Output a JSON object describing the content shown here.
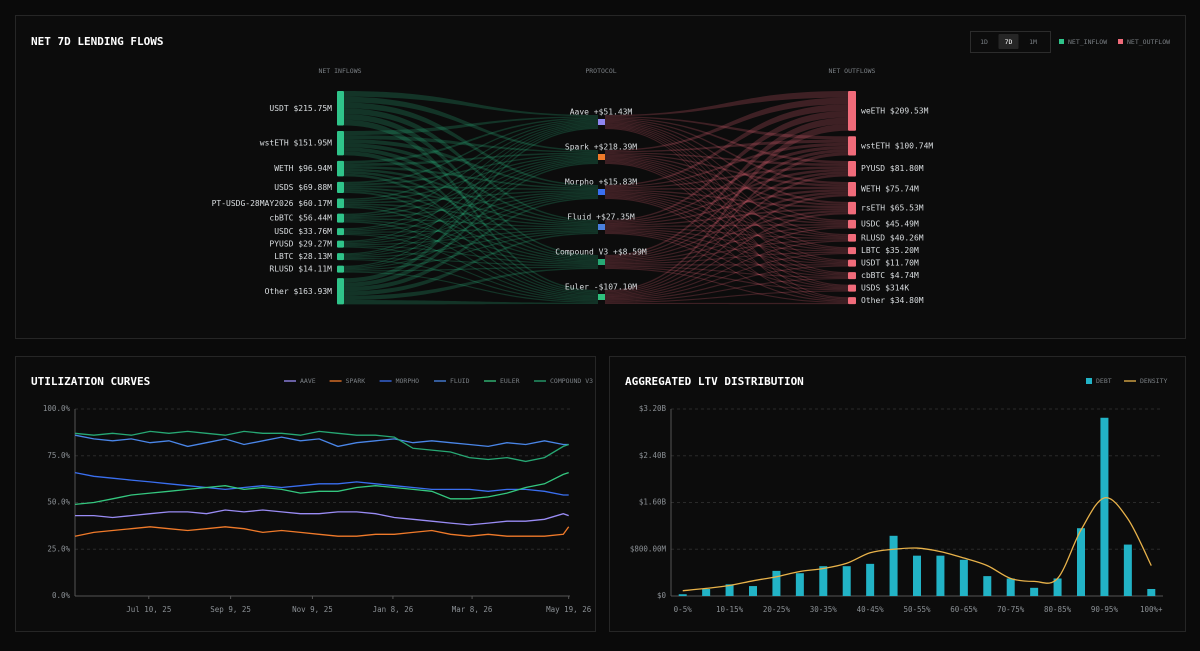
{
  "chart_data": [
    {
      "type": "sankey",
      "title": "NET 7D LENDING FLOWS",
      "ranges": [
        "1D",
        "7D",
        "1M"
      ],
      "active_range": "7D",
      "legend": [
        {
          "name": "NET_INFLOW",
          "color": "#2fc48a"
        },
        {
          "name": "NET_OUTFLOW",
          "color": "#f06b7a"
        }
      ],
      "column_headers": [
        "NET INFLOWS",
        "PROTOCOL",
        "NET OUTFLOWS"
      ],
      "inflows": [
        {
          "label": "USDT $215.75M",
          "value": 215.75
        },
        {
          "label": "wstETH $151.95M",
          "value": 151.95
        },
        {
          "label": "WETH $96.94M",
          "value": 96.94
        },
        {
          "label": "USDS $69.88M",
          "value": 69.88
        },
        {
          "label": "PT-USDG-28MAY2026 $60.17M",
          "value": 60.17
        },
        {
          "label": "cbBTC $56.44M",
          "value": 56.44
        },
        {
          "label": "USDC $33.76M",
          "value": 33.76
        },
        {
          "label": "PYUSD $29.27M",
          "value": 29.27
        },
        {
          "label": "LBTC $28.13M",
          "value": 28.13
        },
        {
          "label": "RLUSD $14.11M",
          "value": 14.11
        },
        {
          "label": "Other $163.93M",
          "value": 163.93
        }
      ],
      "protocols": [
        {
          "label": "Aave +$51.43M",
          "value": 51.43,
          "color": "#8f86f0"
        },
        {
          "label": "Spark +$218.39M",
          "value": 218.39,
          "color": "#f07a2a"
        },
        {
          "label": "Morpho +$15.83M",
          "value": 15.83,
          "color": "#3a6ff0"
        },
        {
          "label": "Fluid +$27.35M",
          "value": 27.35,
          "color": "#4a7fdc"
        },
        {
          "label": "Compound V3 +$8.59M",
          "value": 8.59,
          "color": "#27a874"
        },
        {
          "label": "Euler -$107.10M",
          "value": -107.1,
          "color": "#2fbf7c"
        }
      ],
      "outflows": [
        {
          "label": "weETH $209.53M",
          "value": 209.53
        },
        {
          "label": "wstETH $100.74M",
          "value": 100.74
        },
        {
          "label": "PYUSD $81.80M",
          "value": 81.8
        },
        {
          "label": "WETH $75.74M",
          "value": 75.74
        },
        {
          "label": "rsETH $65.53M",
          "value": 65.53
        },
        {
          "label": "USDC $45.49M",
          "value": 45.49
        },
        {
          "label": "RLUSD $40.26M",
          "value": 40.26
        },
        {
          "label": "LBTC $35.20M",
          "value": 35.2
        },
        {
          "label": "USDT $11.70M",
          "value": 11.7
        },
        {
          "label": "cbBTC $4.74M",
          "value": 4.74
        },
        {
          "label": "USDS $314K",
          "value": 0.314
        },
        {
          "label": "Other $34.80M",
          "value": 34.8
        }
      ]
    },
    {
      "type": "line",
      "title": "UTILIZATION CURVES",
      "x": [
        "2025-05-16",
        "2025-05-30",
        "2025-06-13",
        "2025-06-27",
        "2025-07-11",
        "2025-07-25",
        "2025-08-08",
        "2025-08-22",
        "2025-09-05",
        "2025-09-19",
        "2025-10-03",
        "2025-10-17",
        "2025-10-31",
        "2025-11-14",
        "2025-11-28",
        "2025-12-12",
        "2025-12-26",
        "2026-01-09",
        "2026-01-23",
        "2026-02-06",
        "2026-02-20",
        "2026-03-06",
        "2026-03-20",
        "2026-04-03",
        "2026-04-17",
        "2026-05-01",
        "2026-05-15",
        "2026-05-19"
      ],
      "xlim": [
        "2025-05-16",
        "2026-05-20"
      ],
      "xticks": [
        {
          "value": "2025-07-10",
          "label": "Jul 10, 25"
        },
        {
          "value": "2025-09-09",
          "label": "Sep 9, 25"
        },
        {
          "value": "2025-11-09",
          "label": "Nov 9, 25"
        },
        {
          "value": "2026-01-08",
          "label": "Jan 8, 26"
        },
        {
          "value": "2026-03-08",
          "label": "Mar 8, 26"
        },
        {
          "value": "2026-05-19",
          "label": "May 19, 26"
        }
      ],
      "ylim": [
        0,
        100
      ],
      "yticks": [
        {
          "value": 0,
          "label": "0.0%"
        },
        {
          "value": 25,
          "label": "25.0%"
        },
        {
          "value": 50,
          "label": "50.0%"
        },
        {
          "value": 75,
          "label": "75.0%"
        },
        {
          "value": 100,
          "label": "100.0%"
        }
      ],
      "grid": true,
      "series": [
        {
          "name": "AAVE",
          "color": "#9a8cf5",
          "values": [
            43,
            43,
            42,
            43,
            44,
            45,
            45,
            44,
            46,
            45,
            46,
            45,
            44,
            44,
            45,
            45,
            44,
            42,
            41,
            40,
            39,
            38,
            39,
            40,
            40,
            41,
            44,
            43
          ]
        },
        {
          "name": "SPARK",
          "color": "#f07a2a",
          "values": [
            32,
            34,
            35,
            36,
            37,
            36,
            35,
            36,
            37,
            36,
            34,
            35,
            34,
            33,
            32,
            32,
            33,
            33,
            34,
            35,
            33,
            32,
            33,
            32,
            32,
            32,
            33,
            37
          ]
        },
        {
          "name": "MORPHO",
          "color": "#3a6ff0",
          "values": [
            66,
            64,
            63,
            62,
            61,
            60,
            59,
            58,
            57,
            58,
            59,
            58,
            59,
            60,
            60,
            61,
            60,
            59,
            58,
            57,
            57,
            57,
            56,
            57,
            57,
            56,
            54,
            54
          ]
        },
        {
          "name": "FLUID",
          "color": "#4a86e8",
          "values": [
            86,
            84,
            83,
            84,
            82,
            83,
            80,
            82,
            84,
            81,
            83,
            85,
            83,
            84,
            80,
            82,
            83,
            84,
            82,
            83,
            82,
            81,
            80,
            82,
            81,
            83,
            81,
            81
          ]
        },
        {
          "name": "EULER",
          "color": "#34c77f",
          "values": [
            49,
            50,
            52,
            54,
            55,
            56,
            57,
            58,
            59,
            57,
            58,
            57,
            55,
            56,
            56,
            58,
            59,
            58,
            57,
            56,
            52,
            52,
            53,
            55,
            58,
            60,
            65,
            66
          ]
        },
        {
          "name": "COMPOUND V3",
          "color": "#27a874",
          "values": [
            87,
            86,
            87,
            86,
            88,
            87,
            88,
            87,
            86,
            88,
            87,
            87,
            86,
            88,
            87,
            86,
            86,
            85,
            79,
            78,
            77,
            74,
            73,
            74,
            72,
            74,
            80,
            81
          ]
        }
      ]
    },
    {
      "type": "bar",
      "title": "AGGREGATED LTV DISTRIBUTION",
      "categories": [
        "0-5%",
        null,
        "10-15%",
        null,
        "20-25%",
        null,
        "30-35%",
        null,
        "40-45%",
        null,
        "50-55%",
        null,
        "60-65%",
        null,
        "70-75%",
        null,
        "80-85%",
        null,
        "90-95%",
        null,
        "100%+"
      ],
      "ylim": [
        0,
        3200000000
      ],
      "yticks": [
        {
          "value": 0,
          "label": "$0"
        },
        {
          "value": 800000000,
          "label": "$800.00M"
        },
        {
          "value": 1600000000,
          "label": "$1.60B"
        },
        {
          "value": 2400000000,
          "label": "$2.40B"
        },
        {
          "value": 3200000000,
          "label": "$3.20B"
        }
      ],
      "grid": true,
      "series": [
        {
          "name": "DEBT",
          "color": "#22b3c6",
          "values": [
            30000000,
            120000000,
            200000000,
            170000000,
            430000000,
            390000000,
            510000000,
            510000000,
            550000000,
            1030000000,
            690000000,
            690000000,
            620000000,
            340000000,
            300000000,
            140000000,
            300000000,
            1160000000,
            3050000000,
            880000000,
            120000000
          ]
        },
        {
          "name": "DENSITY",
          "type": "line",
          "color": "#e8b24a",
          "values": [
            90000000,
            130000000,
            180000000,
            260000000,
            330000000,
            420000000,
            470000000,
            560000000,
            740000000,
            800000000,
            820000000,
            760000000,
            650000000,
            520000000,
            300000000,
            250000000,
            300000000,
            1130000000,
            1680000000,
            1320000000,
            520000000
          ]
        }
      ]
    }
  ]
}
